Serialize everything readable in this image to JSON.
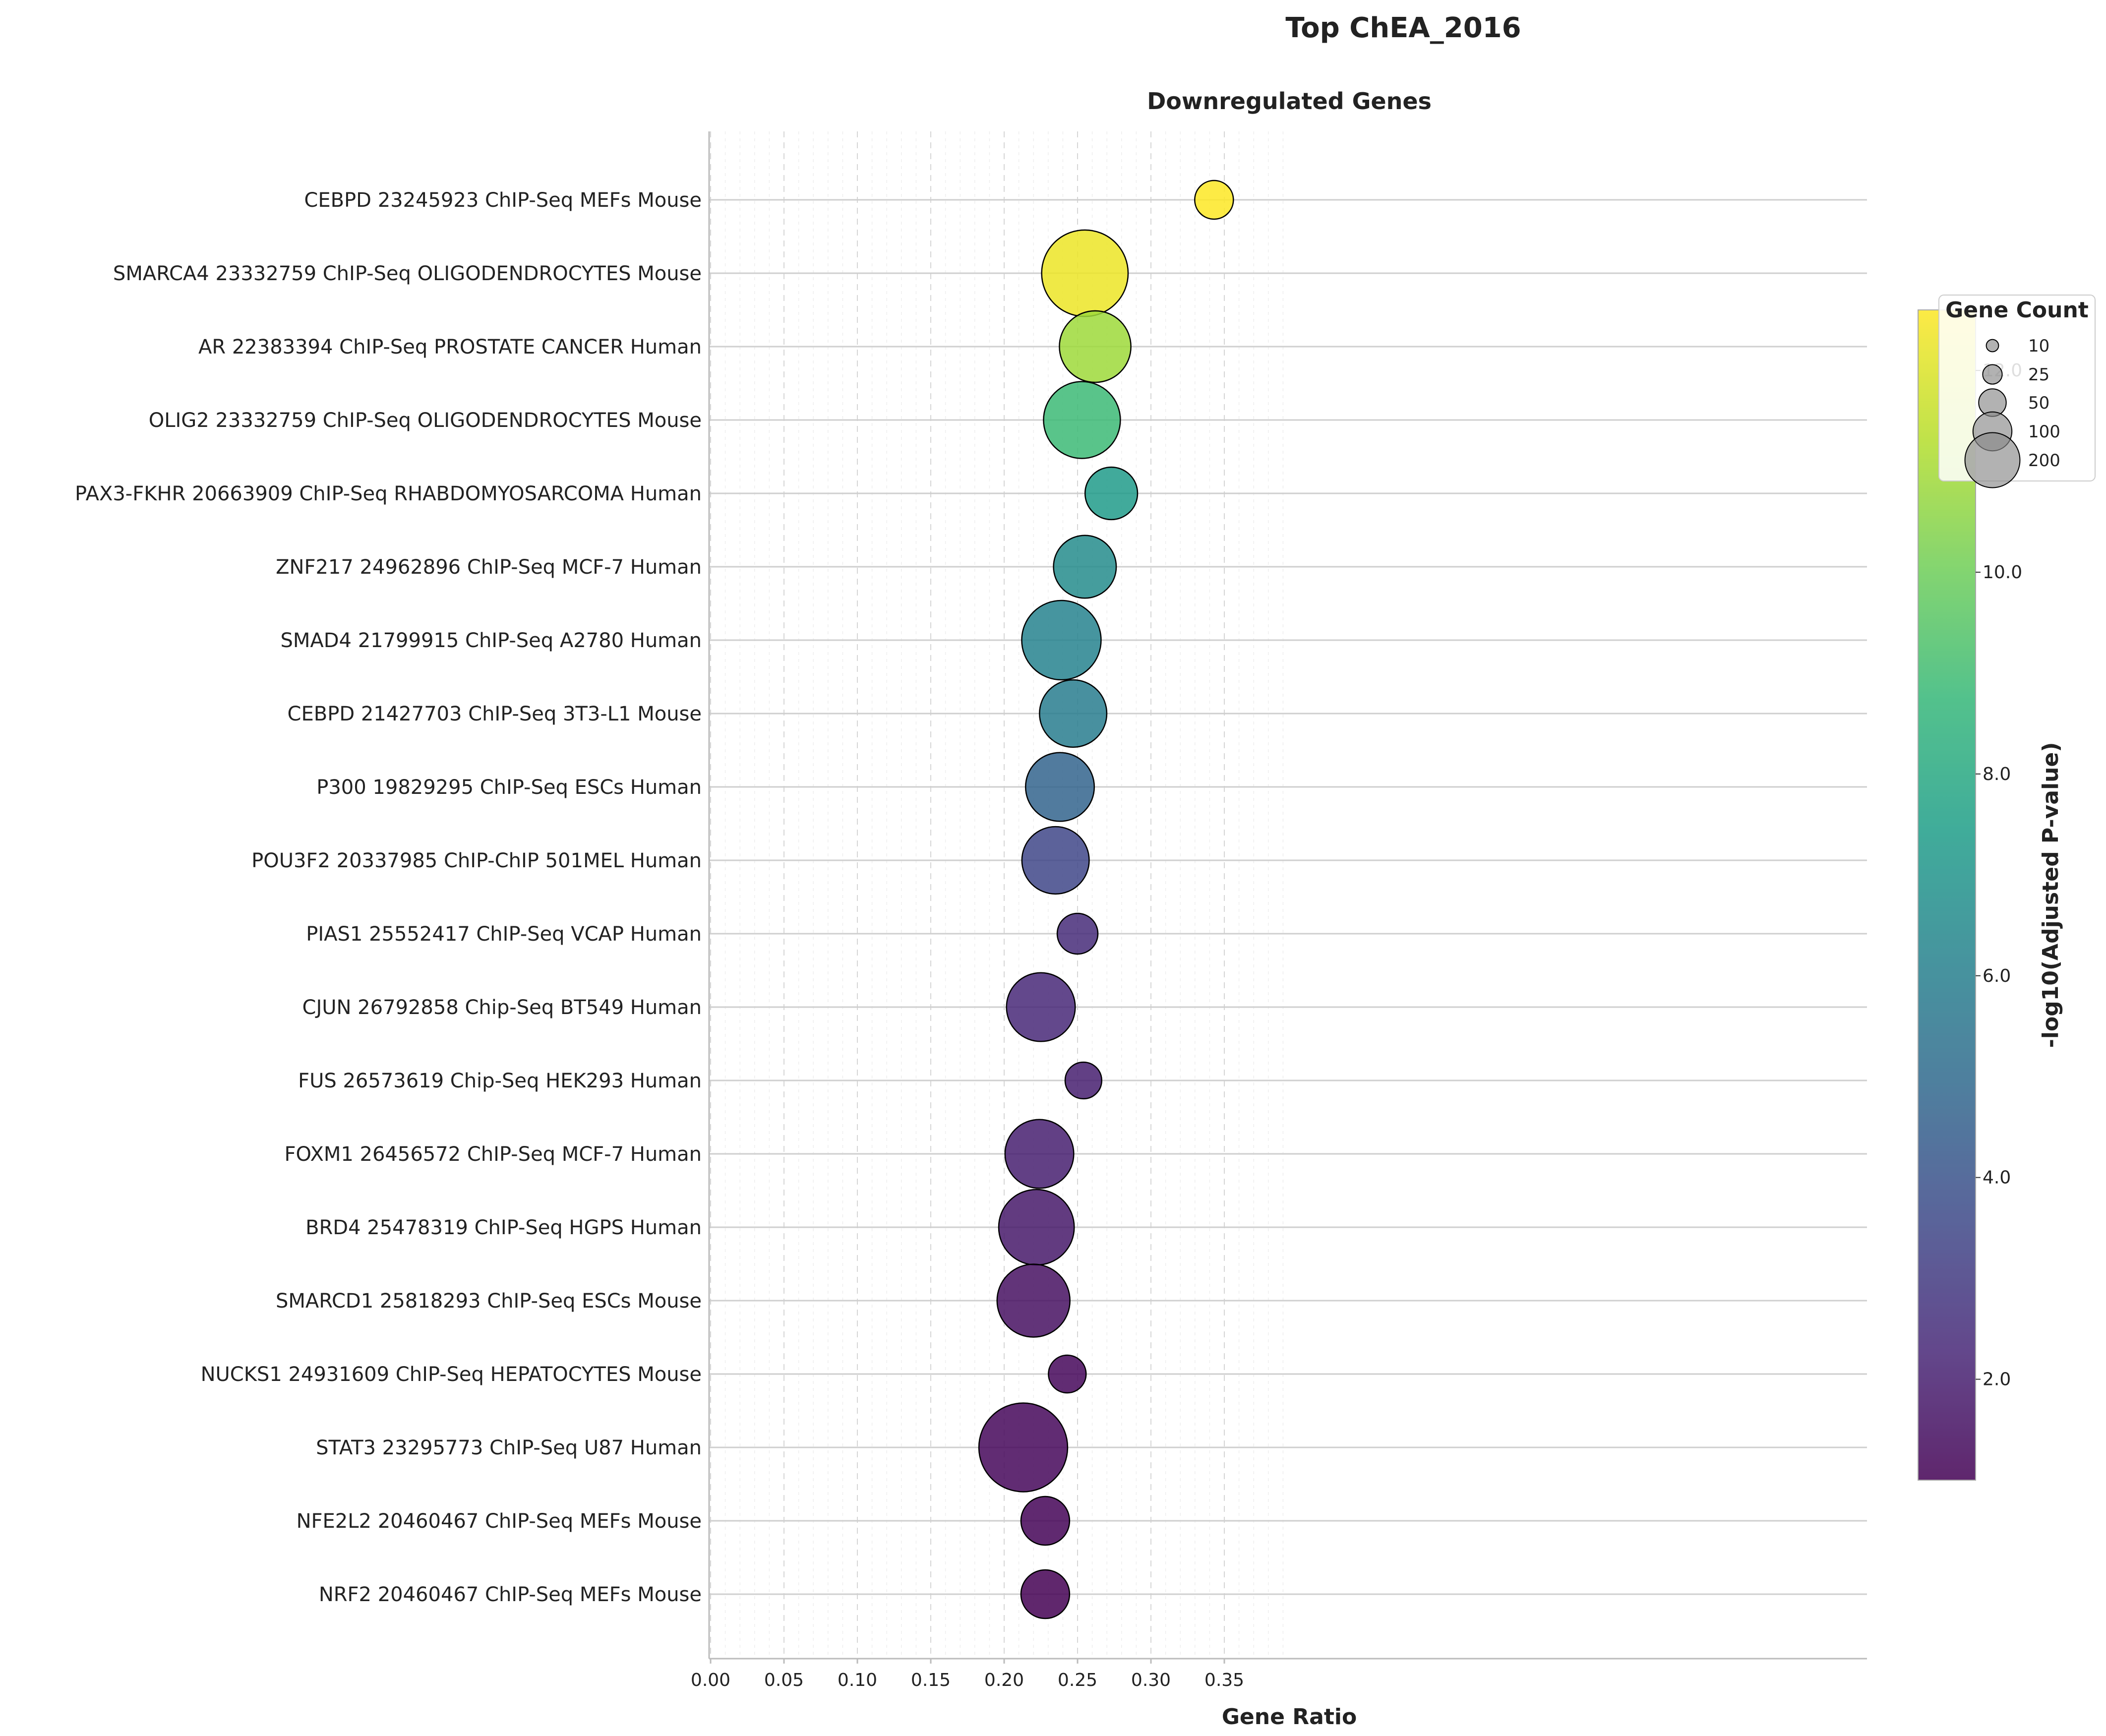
{
  "suptitle": "Top ChEA_2016",
  "chart_data": {
    "type": "scatter",
    "title": "Downregulated Genes",
    "xlabel": "Gene Ratio",
    "xlim": [
      0,
      0.395
    ],
    "xticks": [
      "0.00",
      "0.05",
      "0.10",
      "0.15",
      "0.20",
      "0.25",
      "0.30",
      "0.35"
    ],
    "grid": true,
    "points": [
      {
        "term": "CEBPD 23245923 ChIP-Seq MEFs Mouse",
        "ratio": 0.343,
        "count": 38,
        "neglog10p": 12.6
      },
      {
        "term": "SMARCA4 23332759 ChIP-Seq OLIGODENDROCYTES Mouse",
        "ratio": 0.255,
        "count": 190,
        "neglog10p": 12.3
      },
      {
        "term": "AR 22383394 ChIP-Seq PROSTATE CANCER Human",
        "ratio": 0.262,
        "count": 130,
        "neglog10p": 10.9
      },
      {
        "term": "OLIG2 23332759 ChIP-Seq OLIGODENDROCYTES Mouse",
        "ratio": 0.253,
        "count": 150,
        "neglog10p": 8.9
      },
      {
        "term": "PAX3-FKHR 20663909 ChIP-Seq RHABDOMYOSARCOMA Human",
        "ratio": 0.273,
        "count": 70,
        "neglog10p": 7.3
      },
      {
        "term": "ZNF217 24962896 ChIP-Seq MCF-7 Human",
        "ratio": 0.255,
        "count": 100,
        "neglog10p": 6.6
      },
      {
        "term": "SMAD4 21799915 ChIP-Seq A2780 Human",
        "ratio": 0.239,
        "count": 160,
        "neglog10p": 6.2
      },
      {
        "term": "CEBPD 21427703 ChIP-Seq 3T3-L1 Mouse",
        "ratio": 0.247,
        "count": 115,
        "neglog10p": 5.9
      },
      {
        "term": "P300 19829295 ChIP-Seq ESCs Human",
        "ratio": 0.238,
        "count": 120,
        "neglog10p": 4.7
      },
      {
        "term": "POU3F2 20337985 ChIP-ChIP 501MEL Human",
        "ratio": 0.235,
        "count": 115,
        "neglog10p": 3.5
      },
      {
        "term": "PIAS1 25552417 ChIP-Seq VCAP Human",
        "ratio": 0.25,
        "count": 42,
        "neglog10p": 2.4
      },
      {
        "term": "CJUN 26792858 Chip-Seq BT549 Human",
        "ratio": 0.225,
        "count": 120,
        "neglog10p": 2.3
      },
      {
        "term": "FUS 26573619 Chip-Seq HEK293 Human",
        "ratio": 0.254,
        "count": 34,
        "neglog10p": 2.0
      },
      {
        "term": "FOXM1 26456572 ChIP-Seq MCF-7 Human",
        "ratio": 0.224,
        "count": 120,
        "neglog10p": 2.0
      },
      {
        "term": "BRD4 25478319 ChIP-Seq HGPS Human",
        "ratio": 0.222,
        "count": 145,
        "neglog10p": 1.8
      },
      {
        "term": "SMARCD1 25818293 ChIP-Seq ESCs Mouse",
        "ratio": 0.22,
        "count": 135,
        "neglog10p": 1.5
      },
      {
        "term": "NUCKS1 24931609 ChIP-Seq HEPATOCYTES Mouse",
        "ratio": 0.243,
        "count": 36,
        "neglog10p": 1.2
      },
      {
        "term": "STAT3 23295773 ChIP-Seq U87 Human",
        "ratio": 0.213,
        "count": 200,
        "neglog10p": 1.2
      },
      {
        "term": "NFE2L2 20460467 ChIP-Seq MEFs Mouse",
        "ratio": 0.228,
        "count": 60,
        "neglog10p": 1.1
      },
      {
        "term": "NRF2 20460467 ChIP-Seq MEFs Mouse",
        "ratio": 0.228,
        "count": 60,
        "neglog10p": 1.0
      }
    ],
    "size_legend": {
      "title": "Gene Count",
      "entries": [
        {
          "label": "10",
          "count": 10
        },
        {
          "label": "25",
          "count": 25
        },
        {
          "label": "50",
          "count": 50
        },
        {
          "label": "100",
          "count": 100
        },
        {
          "label": "200",
          "count": 200
        }
      ],
      "placement": "top-right"
    },
    "colorbar": {
      "label": "-log10(Adjusted P-value)",
      "colormap": "viridis",
      "range": [
        1.0,
        12.6
      ],
      "ticks": [
        {
          "label": "2.0",
          "value": 2.0
        },
        {
          "label": "4.0",
          "value": 4.0
        },
        {
          "label": "6.0",
          "value": 6.0
        },
        {
          "label": "8.0",
          "value": 8.0
        },
        {
          "label": "10.0",
          "value": 10.0
        },
        {
          "label": "12.0",
          "value": 12.0
        }
      ]
    },
    "colors": {
      "viridis": [
        "#440154",
        "#482878",
        "#3e4989",
        "#31688e",
        "#26828e",
        "#1f9e89",
        "#35b779",
        "#6ece58",
        "#b5de2b",
        "#fde725"
      ],
      "axis": "#bbbbbb",
      "grid_major": "#cccccc",
      "grid_minor": "#eeeeee",
      "marker_edge": "#000000"
    }
  }
}
